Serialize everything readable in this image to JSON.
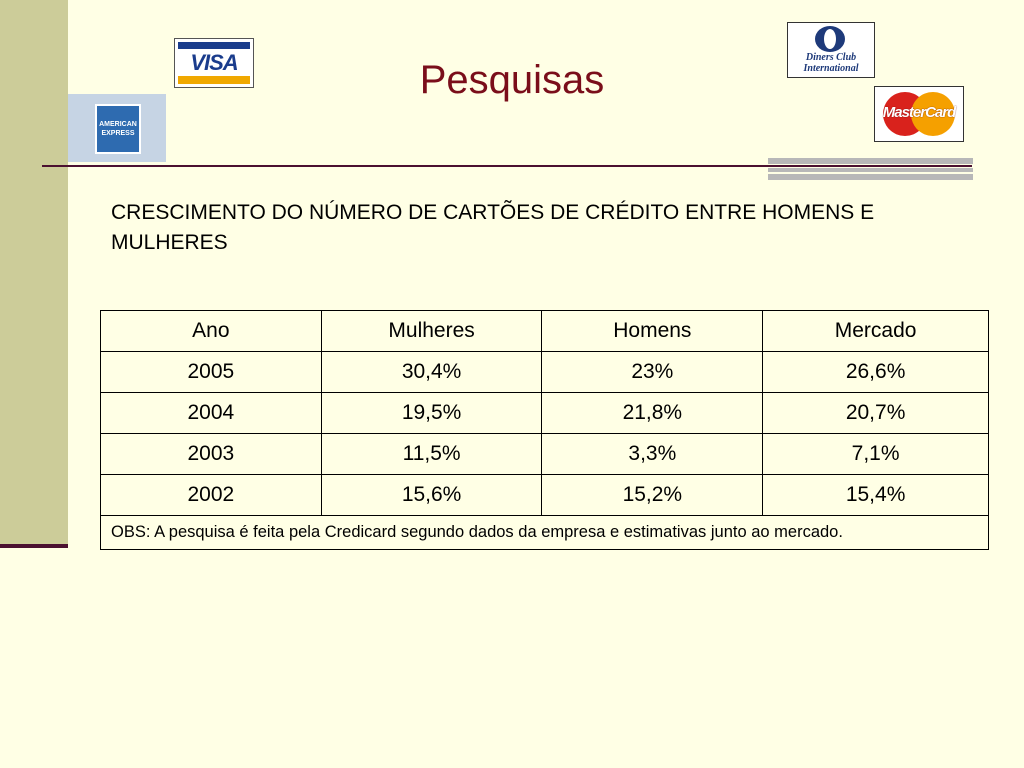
{
  "slide": {
    "title": "Pesquisas",
    "heading": "CRESCIMENTO DO NÚMERO DE CARTÕES DE CRÉDITO ENTRE HOMENS E MULHERES"
  },
  "logos": {
    "visa": "VISA",
    "amex_line1": "AMERICAN",
    "amex_line2": "EXPRESS",
    "diners_line1": "Diners Club",
    "diners_line2": "International",
    "mastercard": "MasterCard"
  },
  "table": {
    "headers": [
      "Ano",
      "Mulheres",
      "Homens",
      "Mercado"
    ],
    "rows": [
      [
        "2005",
        "30,4%",
        "23%",
        "26,6%"
      ],
      [
        "2004",
        "19,5%",
        "21,8%",
        "20,7%"
      ],
      [
        "2003",
        "11,5%",
        "3,3%",
        "7,1%"
      ],
      [
        "2002",
        "15,6%",
        "15,2%",
        "15,4%"
      ]
    ],
    "note": "OBS: A pesquisa é feita pela Credicard segundo dados da empresa e estimativas junto ao mercado."
  },
  "colors": {
    "background": "#FFFFE5",
    "side_band": "#CCCC99",
    "title": "#7A0E1A",
    "rule": "#4B1030"
  }
}
